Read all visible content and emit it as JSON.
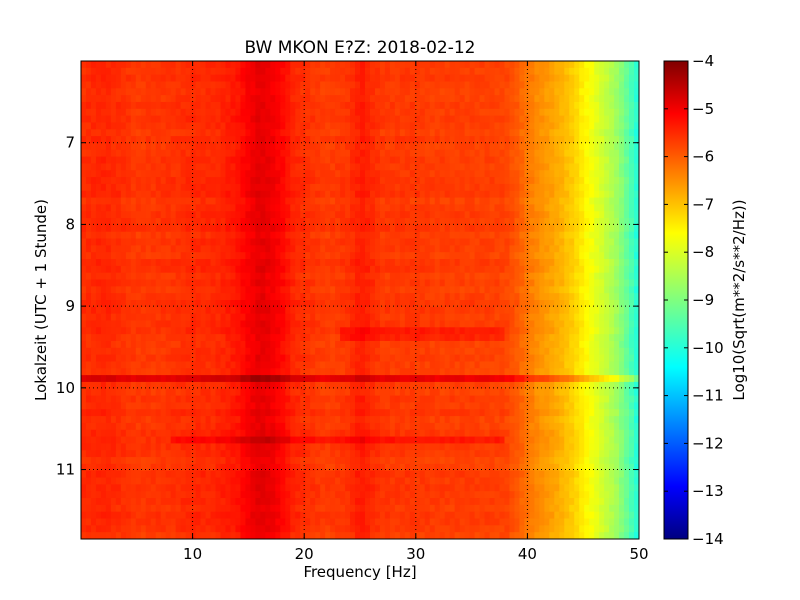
{
  "chart_data": {
    "type": "heatmap",
    "title": "BW MKON E?Z: 2018-02-12",
    "xlabel": "Frequency [Hz]",
    "ylabel": "Lokalzeit (UTC + 1 Stunde)",
    "xlim": [
      0,
      50
    ],
    "ylim": [
      11.85,
      6.0
    ],
    "y_axis_inverted": true,
    "x_ticks": [
      10,
      20,
      30,
      40,
      50
    ],
    "y_ticks": [
      7,
      8,
      9,
      10,
      11
    ],
    "grid": true,
    "colormap": "jet",
    "colorbar": {
      "label": "Log10(Sqrt(m**2/s**2/Hz))",
      "range": [
        -14,
        -4
      ],
      "ticks": [
        -4,
        -5,
        -6,
        -7,
        -8,
        -9,
        -10,
        -11,
        -12,
        -13,
        -14
      ]
    },
    "frequency_profile": {
      "frequency_hz": [
        0,
        2,
        5,
        8,
        10,
        12,
        14,
        15,
        16,
        17,
        18,
        19,
        20,
        22,
        24,
        25,
        26,
        27,
        28,
        30,
        32,
        35,
        38,
        39,
        40,
        41,
        42,
        43,
        44,
        45,
        46,
        47,
        48,
        49,
        50
      ],
      "log10_amplitude": [
        -5.7,
        -5.6,
        -5.8,
        -5.75,
        -5.65,
        -5.65,
        -5.45,
        -5.2,
        -5.0,
        -5.1,
        -5.3,
        -5.6,
        -5.7,
        -5.85,
        -5.75,
        -5.5,
        -5.65,
        -5.8,
        -5.8,
        -5.8,
        -5.85,
        -5.85,
        -5.9,
        -6.1,
        -6.4,
        -6.65,
        -6.8,
        -7.0,
        -7.25,
        -7.6,
        -7.95,
        -8.3,
        -8.7,
        -9.3,
        -10.0
      ]
    },
    "events": [
      {
        "time": 9.88,
        "freq_from": 0,
        "freq_to": 50,
        "log10_amplitude_offset": 0.8
      },
      {
        "time": 10.67,
        "freq_from": 8,
        "freq_to": 38,
        "log10_amplitude_offset": 0.35
      },
      {
        "time": 9.35,
        "freq_from": 23,
        "freq_to": 38,
        "log10_amplitude_offset": 0.3
      }
    ],
    "colors": {
      "axes": "#000000",
      "grid": "#000000",
      "background": "#ffffff"
    }
  }
}
